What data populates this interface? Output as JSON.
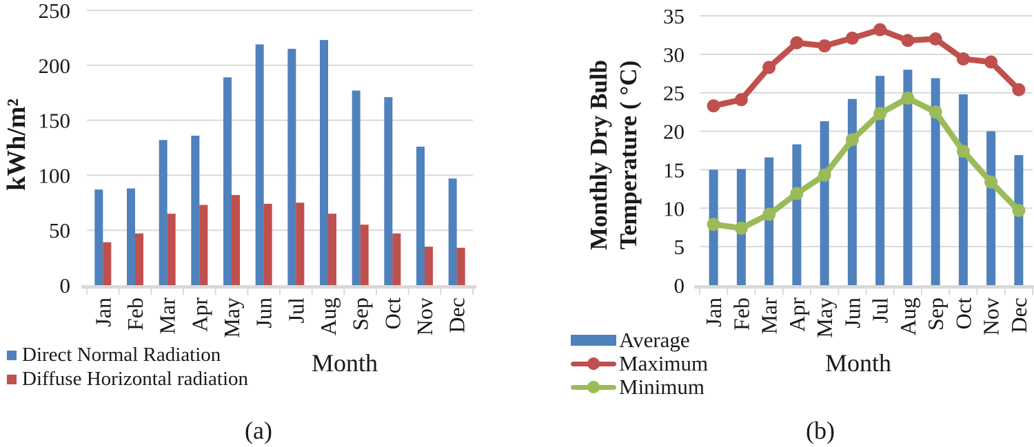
{
  "figure": {
    "captions": {
      "a": "(a)",
      "b": "(b)"
    }
  },
  "colors": {
    "bar_blue": "#4f81bd",
    "line_red": "#c0504d",
    "line_green": "#9bbb59",
    "gridline": "#d9d9d9",
    "text": "#1a1a1a"
  },
  "chart_data": [
    {
      "panel": "a",
      "type": "bar",
      "title": "",
      "xlabel": "Month",
      "ylabel": "kWh/m²",
      "ylim": [
        0,
        250
      ],
      "yticks": [
        0,
        50,
        100,
        150,
        200,
        250
      ],
      "grid": true,
      "legend_position": "bottom-left",
      "categories": [
        "Jan",
        "Feb",
        "Mar",
        "Apr",
        "May",
        "Jun",
        "Jul",
        "Aug",
        "Sep",
        "Oct",
        "Nov",
        "Dec"
      ],
      "series": [
        {
          "name": "Direct Normal Radiation",
          "type": "bar",
          "color": "#4f81bd",
          "values": [
            87,
            88,
            132,
            136,
            189,
            219,
            215,
            223,
            177,
            171,
            126,
            97
          ]
        },
        {
          "name": "Diffuse Horizontal radiation",
          "type": "bar",
          "color": "#c0504d",
          "values": [
            39,
            47,
            65,
            73,
            82,
            74,
            75,
            65,
            55,
            47,
            35,
            34
          ]
        }
      ]
    },
    {
      "panel": "b",
      "type": "bar+line",
      "title": "",
      "xlabel": "Month",
      "ylabel_lines": [
        "Monthly Dry Bulb",
        "Temperature ( °C)"
      ],
      "ylim": [
        0,
        35
      ],
      "yticks": [
        0,
        5,
        10,
        15,
        20,
        25,
        30,
        35
      ],
      "grid": true,
      "legend_position": "bottom-left",
      "categories": [
        "Jan",
        "Feb",
        "Mar",
        "Apr",
        "May",
        "Jun",
        "Jul",
        "Aug",
        "Sep",
        "Oct",
        "Nov",
        "Dec"
      ],
      "series": [
        {
          "name": "Average",
          "type": "bar",
          "color": "#4f81bd",
          "values": [
            15.0,
            15.1,
            16.6,
            18.3,
            21.3,
            24.2,
            27.2,
            28.0,
            26.9,
            24.8,
            20.0,
            16.9
          ]
        },
        {
          "name": "Maximum",
          "type": "line",
          "color": "#c0504d",
          "values": [
            23.3,
            24.1,
            28.3,
            31.5,
            31.1,
            32.1,
            33.2,
            31.8,
            32.0,
            29.4,
            29.0,
            25.4
          ]
        },
        {
          "name": "Minimum",
          "type": "line",
          "color": "#9bbb59",
          "values": [
            7.9,
            7.4,
            9.2,
            11.9,
            14.3,
            18.9,
            22.3,
            24.3,
            22.5,
            17.4,
            13.4,
            9.7
          ]
        }
      ]
    }
  ]
}
